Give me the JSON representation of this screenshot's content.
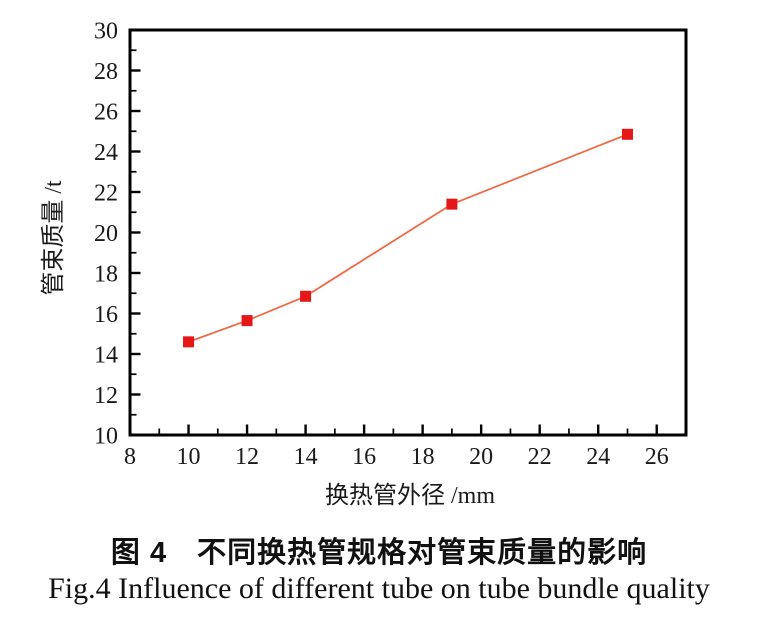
{
  "captions": {
    "chinese": "图 4　不同换热管规格对管束质量的影响",
    "english": "Fig.4  Influence of different tube on tube bundle quality"
  },
  "chart_data": {
    "type": "line",
    "title_zh": "图 4　不同换热管规格对管束质量的影响",
    "title_en": "Fig.4  Influence of different tube on tube bundle quality",
    "xlabel": "换热管外径 /mm",
    "ylabel": "管束质量 /t",
    "x": [
      10,
      12,
      14,
      19,
      25
    ],
    "y": [
      14.6,
      15.65,
      16.85,
      21.4,
      24.85
    ],
    "xlim": [
      8,
      27
    ],
    "ylim": [
      10,
      30
    ],
    "x_major_ticks": [
      8,
      10,
      12,
      14,
      16,
      18,
      20,
      22,
      24,
      26
    ],
    "y_major_ticks": [
      10,
      12,
      14,
      16,
      18,
      20,
      22,
      24,
      26,
      28,
      30
    ],
    "x_minor_ticks": [
      9,
      11,
      13,
      15,
      17,
      19,
      21,
      23,
      25
    ],
    "y_minor_ticks": [
      11,
      13,
      15,
      17,
      19,
      21,
      23,
      25,
      27,
      29
    ],
    "grid": false,
    "legend": "none",
    "marker": "square",
    "colors": {
      "line": "#ef6a45",
      "marker": "#e51717",
      "frame": "#000000",
      "text": "#1a1a1a"
    }
  }
}
